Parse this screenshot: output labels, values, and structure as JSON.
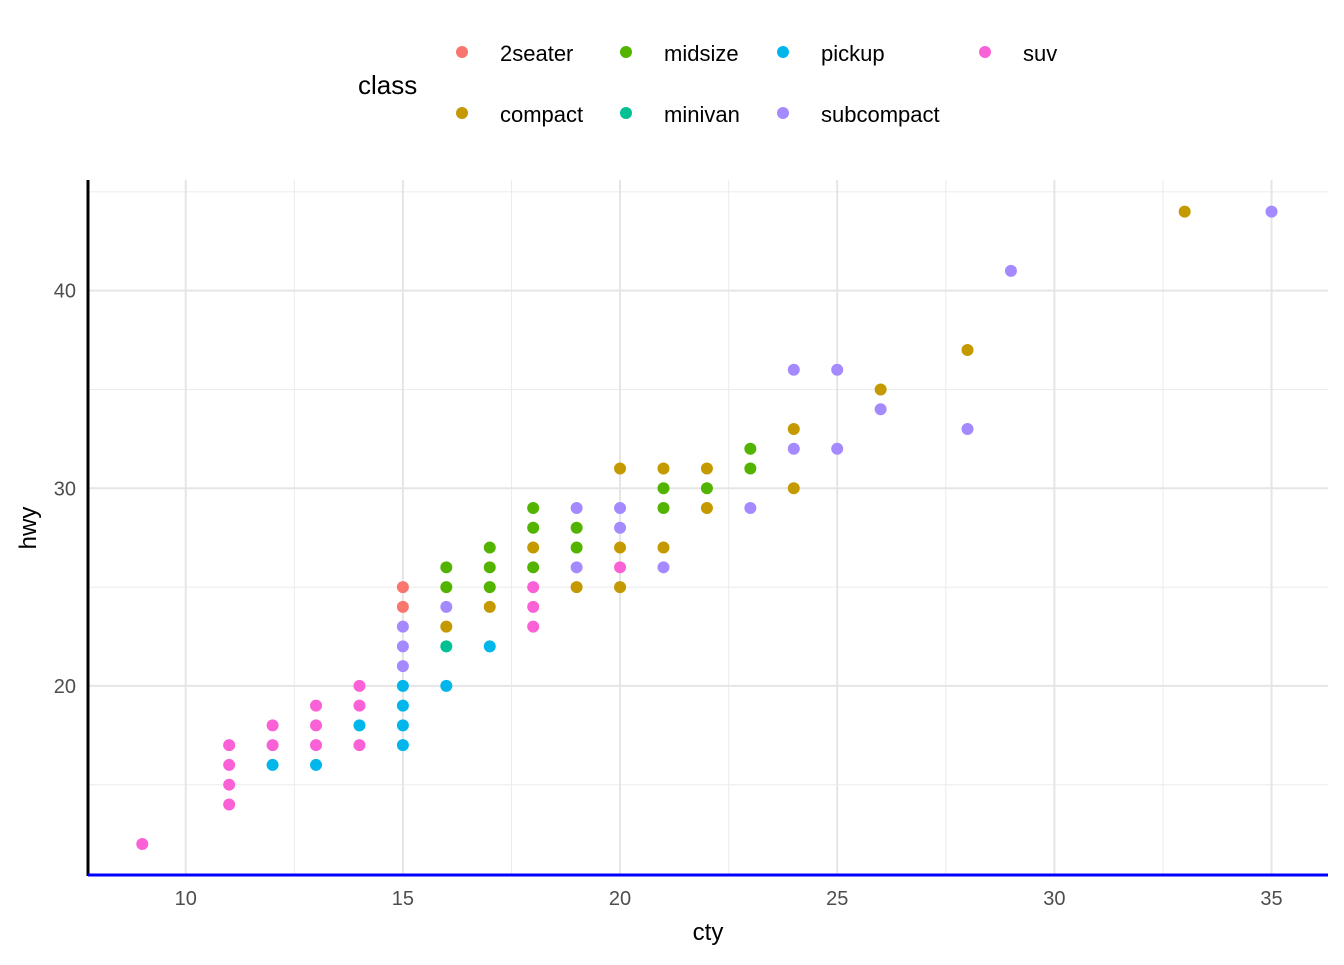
{
  "chart_data": {
    "type": "scatter",
    "xlabel": "cty",
    "ylabel": "hwy",
    "xlim": [
      7.75,
      36.3
    ],
    "ylim": [
      10.43,
      45.6
    ],
    "xticks": [
      10,
      15,
      20,
      25,
      30,
      35
    ],
    "yticks": [
      20,
      30,
      40
    ],
    "grid": true,
    "legend": {
      "title": "class",
      "placement": "top"
    },
    "classes": [
      {
        "name": "2seater",
        "color": "#F8766D"
      },
      {
        "name": "compact",
        "color": "#C49A00"
      },
      {
        "name": "midsize",
        "color": "#53B400"
      },
      {
        "name": "minivan",
        "color": "#00C094"
      },
      {
        "name": "pickup",
        "color": "#00B6EB"
      },
      {
        "name": "subcompact",
        "color": "#A58AFF"
      },
      {
        "name": "suv",
        "color": "#FB61D7"
      }
    ],
    "points": [
      [
        9,
        12,
        "suv"
      ],
      [
        11,
        17,
        "suv"
      ],
      [
        11,
        16,
        "suv"
      ],
      [
        11,
        15,
        "suv"
      ],
      [
        11,
        14,
        "suv"
      ],
      [
        12,
        18,
        "suv"
      ],
      [
        12,
        17,
        "suv"
      ],
      [
        12,
        16,
        "pickup"
      ],
      [
        13,
        19,
        "suv"
      ],
      [
        13,
        18,
        "suv"
      ],
      [
        13,
        17,
        "suv"
      ],
      [
        13,
        16,
        "pickup"
      ],
      [
        14,
        20,
        "suv"
      ],
      [
        14,
        19,
        "suv"
      ],
      [
        14,
        17,
        "suv"
      ],
      [
        14,
        18,
        "pickup"
      ],
      [
        15,
        25,
        "2seater"
      ],
      [
        15,
        24,
        "2seater"
      ],
      [
        15,
        23,
        "subcompact"
      ],
      [
        15,
        22,
        "subcompact"
      ],
      [
        15,
        21,
        "subcompact"
      ],
      [
        15,
        20,
        "pickup"
      ],
      [
        15,
        19,
        "pickup"
      ],
      [
        15,
        18,
        "pickup"
      ],
      [
        15,
        17,
        "pickup"
      ],
      [
        16,
        26,
        "midsize"
      ],
      [
        16,
        25,
        "midsize"
      ],
      [
        16,
        24,
        "subcompact"
      ],
      [
        16,
        23,
        "compact"
      ],
      [
        16,
        22,
        "minivan"
      ],
      [
        16,
        20,
        "pickup"
      ],
      [
        17,
        27,
        "midsize"
      ],
      [
        17,
        26,
        "midsize"
      ],
      [
        17,
        25,
        "midsize"
      ],
      [
        17,
        24,
        "compact"
      ],
      [
        17,
        22,
        "pickup"
      ],
      [
        18,
        29,
        "midsize"
      ],
      [
        18,
        28,
        "midsize"
      ],
      [
        18,
        27,
        "compact"
      ],
      [
        18,
        26,
        "midsize"
      ],
      [
        18,
        25,
        "suv"
      ],
      [
        18,
        24,
        "suv"
      ],
      [
        18,
        23,
        "suv"
      ],
      [
        19,
        29,
        "subcompact"
      ],
      [
        19,
        28,
        "midsize"
      ],
      [
        19,
        27,
        "midsize"
      ],
      [
        19,
        26,
        "subcompact"
      ],
      [
        19,
        25,
        "compact"
      ],
      [
        20,
        31,
        "compact"
      ],
      [
        20,
        29,
        "subcompact"
      ],
      [
        20,
        28,
        "subcompact"
      ],
      [
        20,
        27,
        "compact"
      ],
      [
        20,
        26,
        "suv"
      ],
      [
        20,
        25,
        "compact"
      ],
      [
        21,
        31,
        "compact"
      ],
      [
        21,
        30,
        "midsize"
      ],
      [
        21,
        29,
        "midsize"
      ],
      [
        21,
        27,
        "compact"
      ],
      [
        21,
        26,
        "subcompact"
      ],
      [
        22,
        31,
        "compact"
      ],
      [
        22,
        30,
        "midsize"
      ],
      [
        22,
        29,
        "compact"
      ],
      [
        23,
        32,
        "midsize"
      ],
      [
        23,
        31,
        "midsize"
      ],
      [
        23,
        29,
        "subcompact"
      ],
      [
        24,
        36,
        "subcompact"
      ],
      [
        24,
        33,
        "compact"
      ],
      [
        24,
        32,
        "subcompact"
      ],
      [
        24,
        30,
        "compact"
      ],
      [
        25,
        36,
        "subcompact"
      ],
      [
        25,
        32,
        "subcompact"
      ],
      [
        26,
        35,
        "compact"
      ],
      [
        26,
        34,
        "subcompact"
      ],
      [
        28,
        37,
        "compact"
      ],
      [
        28,
        33,
        "subcompact"
      ],
      [
        29,
        41,
        "subcompact"
      ],
      [
        33,
        44,
        "compact"
      ],
      [
        35,
        44,
        "subcompact"
      ]
    ]
  }
}
